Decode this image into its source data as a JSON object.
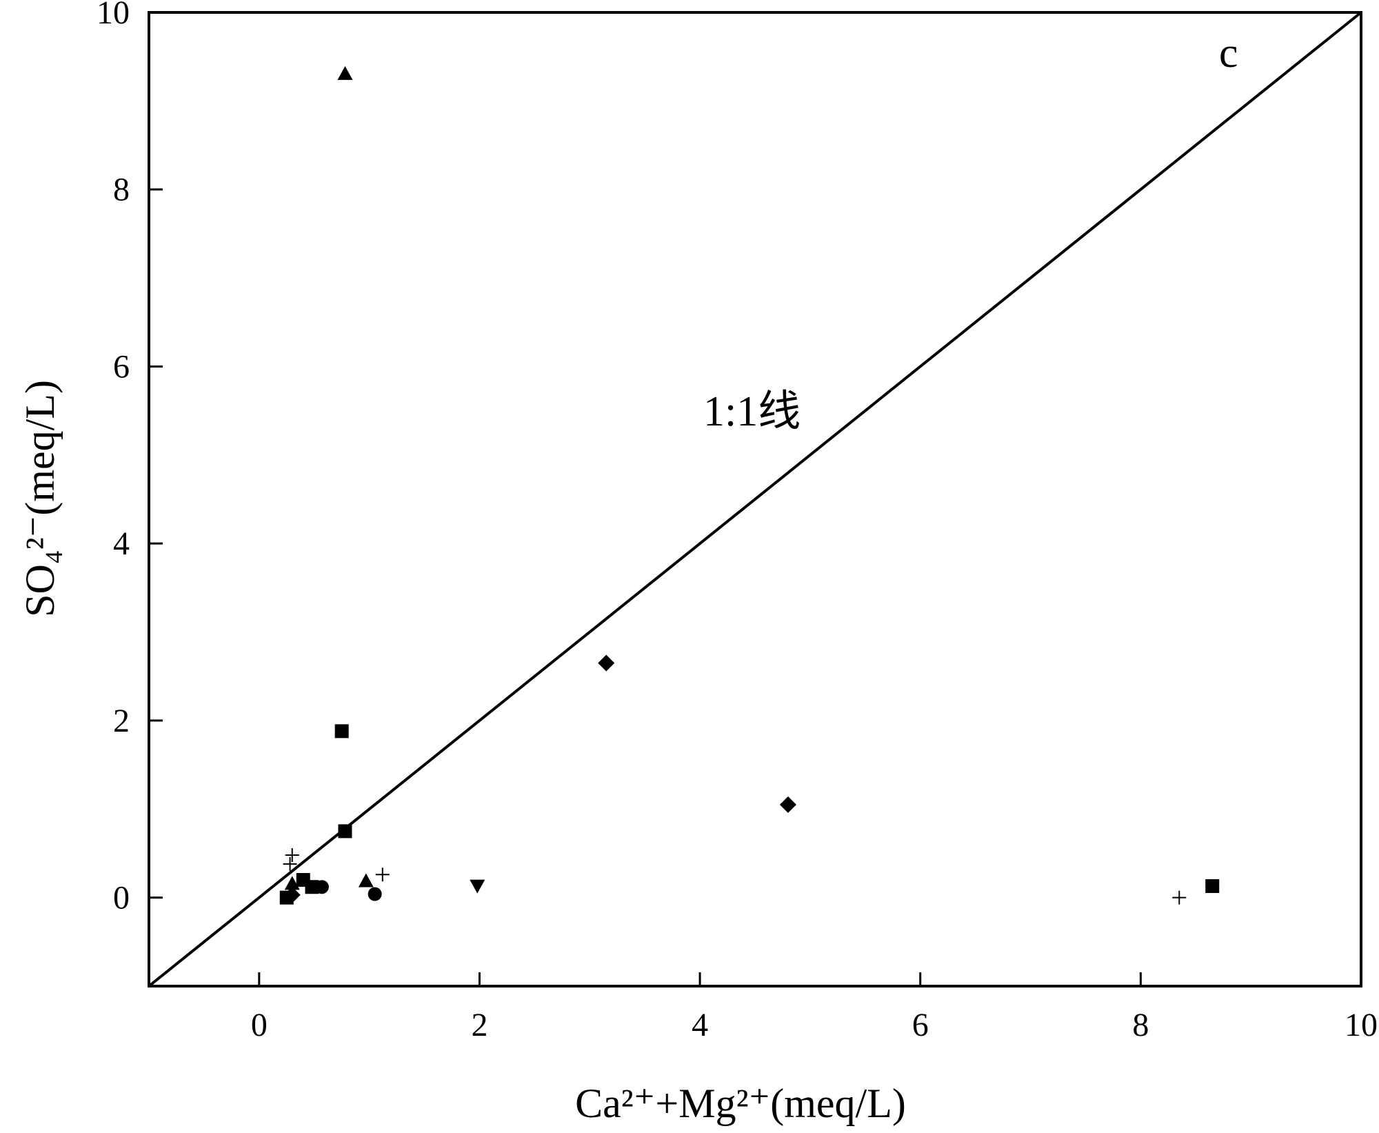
{
  "chart_data": {
    "type": "scatter",
    "title": "",
    "xlabel": "Ca²⁺+Mg²⁺(meq/L)",
    "ylabel": "SO₄²⁻(meq/L)",
    "xlim": [
      -1,
      10
    ],
    "ylim": [
      -1,
      10
    ],
    "xticks": [
      "0",
      "2",
      "4",
      "6",
      "8",
      "10"
    ],
    "yticks": [
      "0",
      "2",
      "4",
      "6",
      "8",
      "10"
    ],
    "grid": false,
    "reference_line": {
      "label": "1:1线",
      "slope": 1,
      "intercept": 0
    },
    "panel_label": "c",
    "series": [
      {
        "marker": "square",
        "points": [
          [
            0.75,
            1.88
          ],
          [
            0.78,
            0.75
          ],
          [
            0.25,
            0.0
          ],
          [
            0.4,
            0.2
          ],
          [
            0.48,
            0.12
          ],
          [
            8.65,
            0.13
          ]
        ]
      },
      {
        "marker": "triangle-up",
        "points": [
          [
            0.78,
            9.3
          ],
          [
            0.97,
            0.18
          ],
          [
            0.3,
            0.15
          ]
        ]
      },
      {
        "marker": "triangle-down",
        "points": [
          [
            1.98,
            0.14
          ]
        ]
      },
      {
        "marker": "diamond",
        "points": [
          [
            3.15,
            2.65
          ],
          [
            4.8,
            1.05
          ],
          [
            0.3,
            0.03
          ]
        ]
      },
      {
        "marker": "circle",
        "points": [
          [
            0.57,
            0.12
          ],
          [
            1.05,
            0.04
          ]
        ]
      },
      {
        "marker": "plus",
        "points": [
          [
            0.3,
            0.48
          ],
          [
            0.28,
            0.38
          ],
          [
            1.12,
            0.26
          ],
          [
            8.35,
            0.0
          ]
        ]
      }
    ]
  }
}
